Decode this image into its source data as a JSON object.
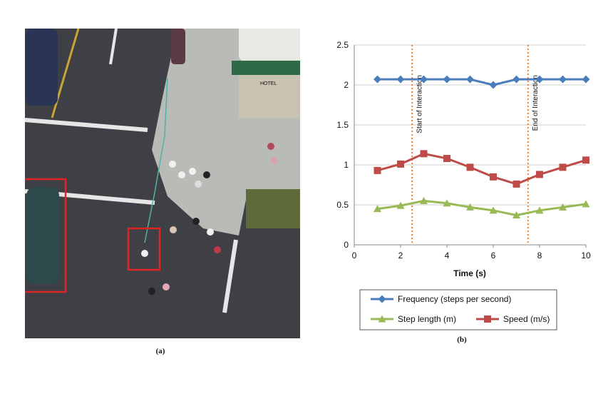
{
  "panel_a": {
    "caption": "(a)",
    "sign_text": "HOTEL"
  },
  "panel_b": {
    "caption": "(b)"
  },
  "chart_data": {
    "type": "line",
    "x": [
      1,
      2,
      3,
      4,
      5,
      6,
      7,
      8,
      9,
      10
    ],
    "xlabel": "Time (s)",
    "ylabel": "",
    "xlim": [
      0,
      10
    ],
    "ylim": [
      0,
      2.5
    ],
    "xticks": [
      "0",
      "2",
      "4",
      "6",
      "8",
      "10"
    ],
    "yticks": [
      "0",
      "0.5",
      "1",
      "1.5",
      "2",
      "2.5"
    ],
    "grid": "horizontal",
    "legend_position": "bottom",
    "series": [
      {
        "name": "Frequency (steps per second)",
        "values": [
          2.07,
          2.07,
          2.07,
          2.07,
          2.07,
          2.0,
          2.07,
          2.07,
          2.07,
          2.07
        ],
        "color": "#4a7ebb",
        "marker": "diamond"
      },
      {
        "name": "Step length (m)",
        "values": [
          0.45,
          0.49,
          0.55,
          0.52,
          0.47,
          0.43,
          0.37,
          0.43,
          0.47,
          0.51
        ],
        "color": "#98b954",
        "marker": "triangle"
      },
      {
        "name": "Speed (m/s)",
        "values": [
          0.93,
          1.01,
          1.14,
          1.08,
          0.97,
          0.85,
          0.76,
          0.88,
          0.97,
          1.06
        ],
        "color": "#be4b48",
        "marker": "square"
      }
    ],
    "annotations": [
      {
        "x": 2.5,
        "label": "Start of Interaction",
        "color": "#e8761b"
      },
      {
        "x": 7.5,
        "label": "End of Interaction",
        "color": "#e8761b"
      }
    ]
  }
}
